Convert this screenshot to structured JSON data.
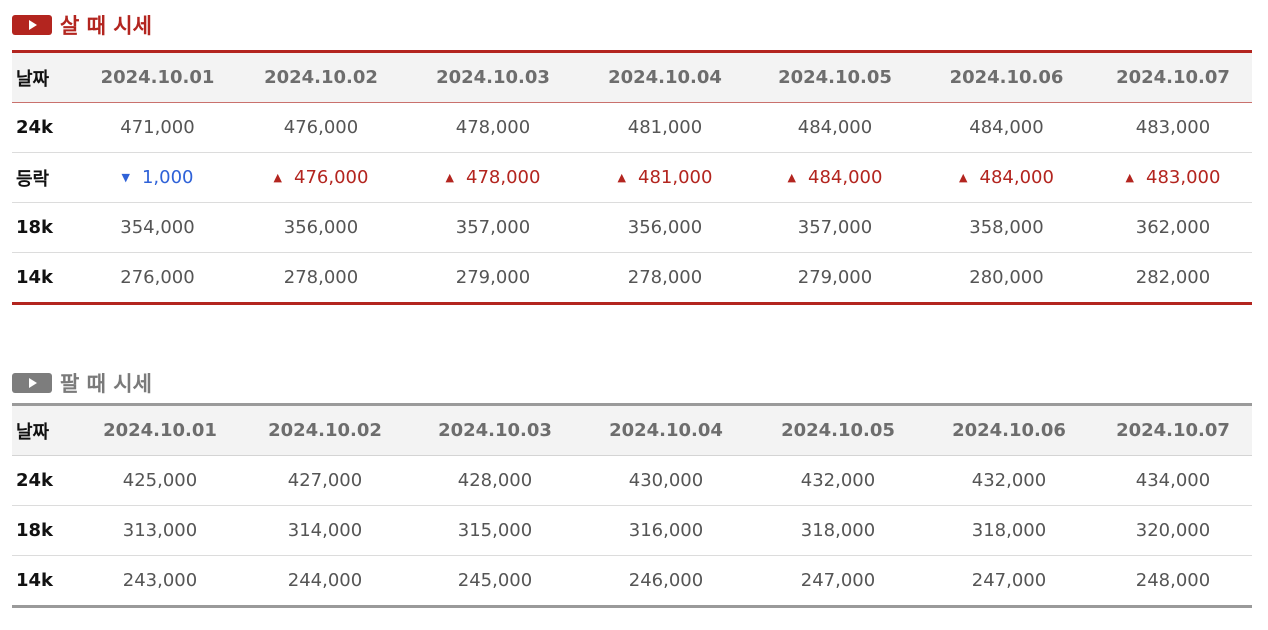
{
  "buy": {
    "title": "살 때 시세",
    "header_label": "날짜",
    "dates": [
      "2024.10.01",
      "2024.10.02",
      "2024.10.03",
      "2024.10.04",
      "2024.10.05",
      "2024.10.06",
      "2024.10.07"
    ],
    "rows": [
      {
        "label": "24k",
        "values": [
          "471,000",
          "476,000",
          "478,000",
          "481,000",
          "484,000",
          "484,000",
          "483,000"
        ]
      },
      {
        "label": "등락",
        "values": [
          "1,000",
          "476,000",
          "478,000",
          "481,000",
          "484,000",
          "484,000",
          "483,000"
        ],
        "directions": [
          "down",
          "up",
          "up",
          "up",
          "up",
          "up",
          "up"
        ]
      },
      {
        "label": "18k",
        "values": [
          "354,000",
          "356,000",
          "357,000",
          "356,000",
          "357,000",
          "358,000",
          "362,000"
        ]
      },
      {
        "label": "14k",
        "values": [
          "276,000",
          "278,000",
          "279,000",
          "278,000",
          "279,000",
          "280,000",
          "282,000"
        ]
      }
    ]
  },
  "sell": {
    "title": "팔 때 시세",
    "header_label": "날짜",
    "dates": [
      "2024.10.01",
      "2024.10.02",
      "2024.10.03",
      "2024.10.04",
      "2024.10.05",
      "2024.10.06",
      "2024.10.07"
    ],
    "rows": [
      {
        "label": "24k",
        "values": [
          "425,000",
          "427,000",
          "428,000",
          "430,000",
          "432,000",
          "432,000",
          "434,000"
        ]
      },
      {
        "label": "18k",
        "values": [
          "313,000",
          "314,000",
          "315,000",
          "316,000",
          "318,000",
          "318,000",
          "320,000"
        ]
      },
      {
        "label": "14k",
        "values": [
          "243,000",
          "244,000",
          "245,000",
          "246,000",
          "247,000",
          "247,000",
          "248,000"
        ]
      }
    ]
  },
  "icons": {
    "section_icon": "play-icon",
    "up_icon": "triangle-up-icon",
    "down_icon": "triangle-down-icon"
  },
  "colors": {
    "buy_accent": "#b3251f",
    "sell_accent": "#9a9a9a",
    "up": "#b3251f",
    "down": "#2f62d8"
  }
}
